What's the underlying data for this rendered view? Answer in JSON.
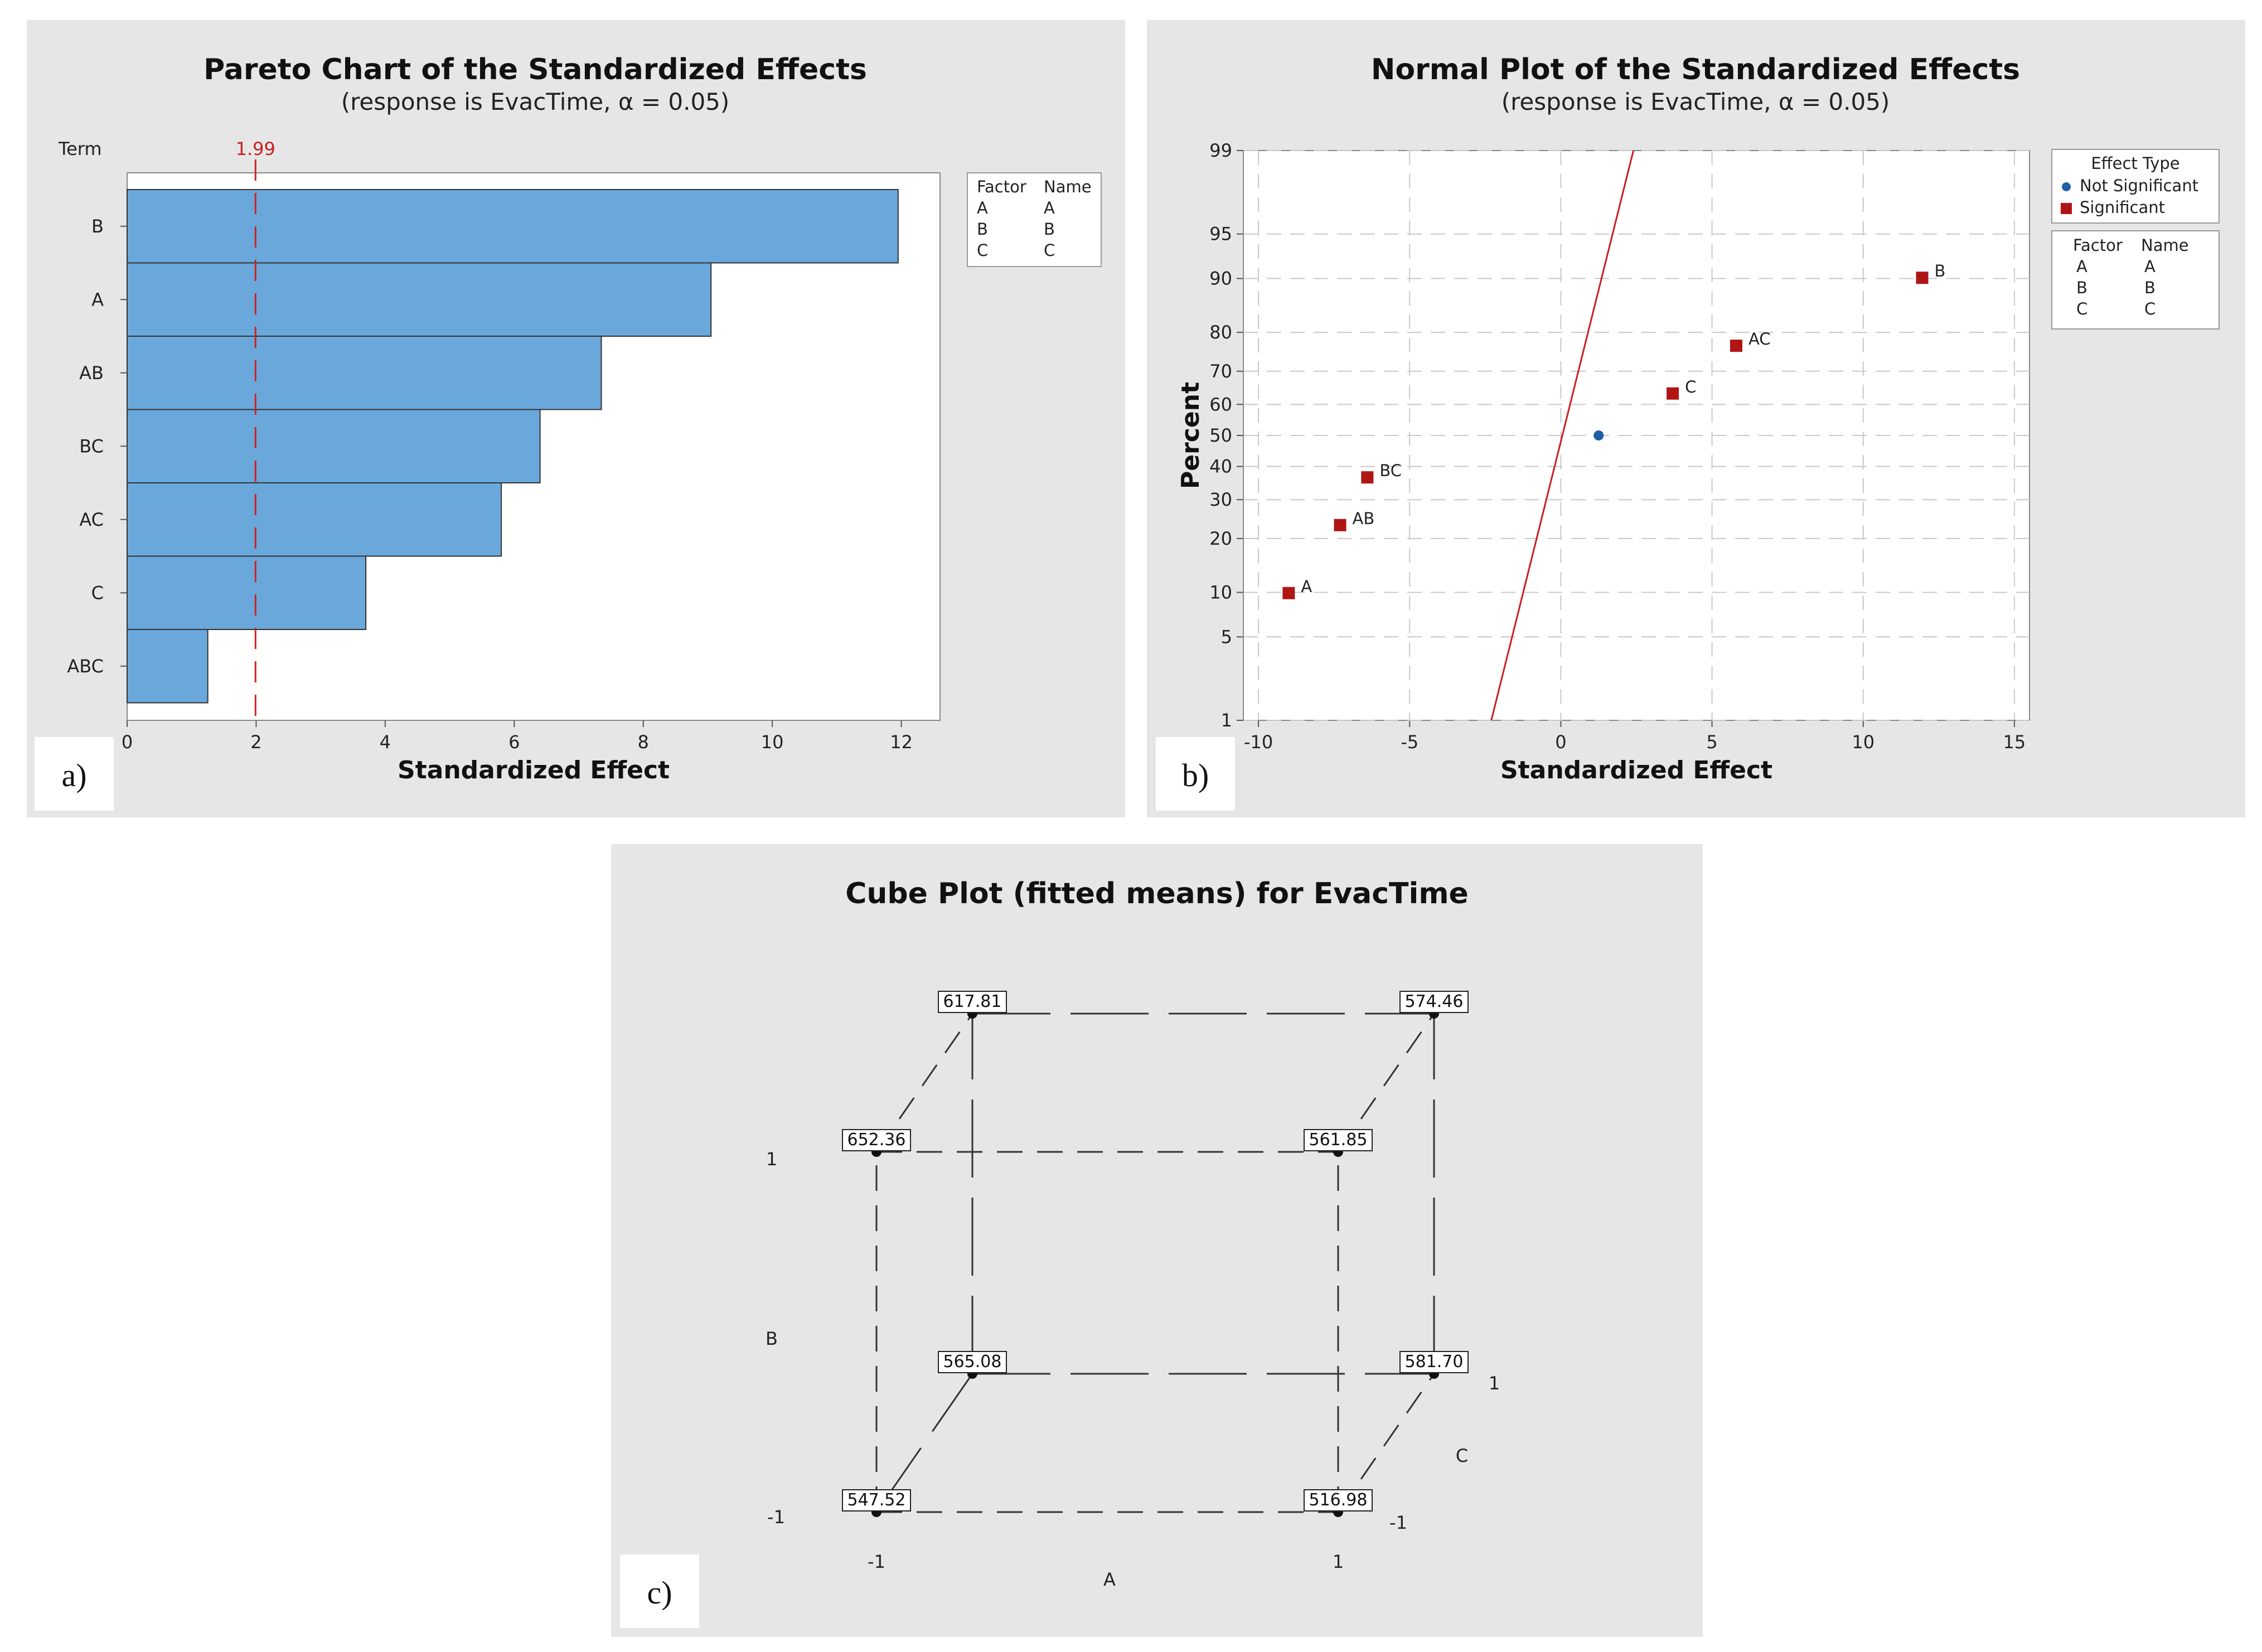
{
  "chart_data": [
    {
      "panel": "a)",
      "type": "bar",
      "orientation": "horizontal",
      "title": "Pareto Chart of the Standardized Effects",
      "subtitle": "(response is EvacTime, α = 0.05)",
      "ylabel": "Term",
      "xlabel": "Standardized Effect",
      "categories": [
        "B",
        "A",
        "AB",
        "BC",
        "AC",
        "C",
        "ABC"
      ],
      "values": [
        11.95,
        9.05,
        7.35,
        6.4,
        5.8,
        3.7,
        1.25
      ],
      "xlim": [
        0,
        12.6
      ],
      "xticks": [
        "0",
        "2",
        "4",
        "6",
        "8",
        "10",
        "12"
      ],
      "reference_line": {
        "value": 1.99,
        "label": "1.99"
      },
      "bar_color": "#6aa8dc",
      "legend": {
        "headers": [
          "Factor",
          "Name"
        ],
        "rows": [
          [
            "A",
            "A"
          ],
          [
            "B",
            "B"
          ],
          [
            "C",
            "C"
          ]
        ]
      }
    },
    {
      "panel": "b)",
      "type": "scatter",
      "title": "Normal Plot of the Standardized Effects",
      "subtitle": "(response is EvacTime, α = 0.05)",
      "xlabel": "Standardized Effect",
      "ylabel": "Percent",
      "xlim": [
        -10.5,
        15.5
      ],
      "xticks": [
        "-10",
        "-5",
        "0",
        "5",
        "10",
        "15"
      ],
      "yticks": [
        "1",
        "5",
        "10",
        "20",
        "30",
        "40",
        "50",
        "60",
        "70",
        "80",
        "90",
        "95",
        "99"
      ],
      "points": [
        {
          "label": "A",
          "x": -9.0,
          "percent": 9.9,
          "type": "Significant"
        },
        {
          "label": "AB",
          "x": -7.3,
          "percent": 23.2,
          "type": "Significant"
        },
        {
          "label": "BC",
          "x": -6.4,
          "percent": 36.6,
          "type": "Significant"
        },
        {
          "label": "",
          "x": 1.25,
          "percent": 50,
          "type": "Not Significant"
        },
        {
          "label": "C",
          "x": 3.7,
          "percent": 63.4,
          "type": "Significant"
        },
        {
          "label": "AC",
          "x": 5.8,
          "percent": 76.8,
          "type": "Significant"
        },
        {
          "label": "B",
          "x": 11.95,
          "percent": 90.1,
          "type": "Significant"
        }
      ],
      "fit_line": {
        "x_at_1": -2.3,
        "x_at_99": 2.4
      },
      "colors": {
        "significant": "#b01515",
        "not_significant": "#1f5fa8",
        "fit": "#c82020"
      },
      "legend": {
        "title": "Effect Type",
        "entries": [
          "Not Significant",
          "Significant"
        ],
        "factor_headers": [
          "Factor",
          "Name"
        ],
        "factor_rows": [
          [
            "A",
            "A"
          ],
          [
            "B",
            "B"
          ],
          [
            "C",
            "C"
          ]
        ]
      }
    },
    {
      "panel": "c)",
      "type": "cube",
      "title": "Cube Plot (fitted means) for EvacTime",
      "factors": [
        "A",
        "B",
        "C"
      ],
      "levels": [
        "-1",
        "1"
      ],
      "corners": [
        {
          "A": -1,
          "B": -1,
          "C": -1,
          "value": "547.52"
        },
        {
          "A": 1,
          "B": -1,
          "C": -1,
          "value": "516.98"
        },
        {
          "A": -1,
          "B": 1,
          "C": -1,
          "value": "652.36"
        },
        {
          "A": 1,
          "B": 1,
          "C": -1,
          "value": "561.85"
        },
        {
          "A": -1,
          "B": -1,
          "C": 1,
          "value": "565.08"
        },
        {
          "A": 1,
          "B": -1,
          "C": 1,
          "value": "581.70"
        },
        {
          "A": -1,
          "B": 1,
          "C": 1,
          "value": "617.81"
        },
        {
          "A": 1,
          "B": 1,
          "C": 1,
          "value": "574.46"
        }
      ]
    }
  ]
}
